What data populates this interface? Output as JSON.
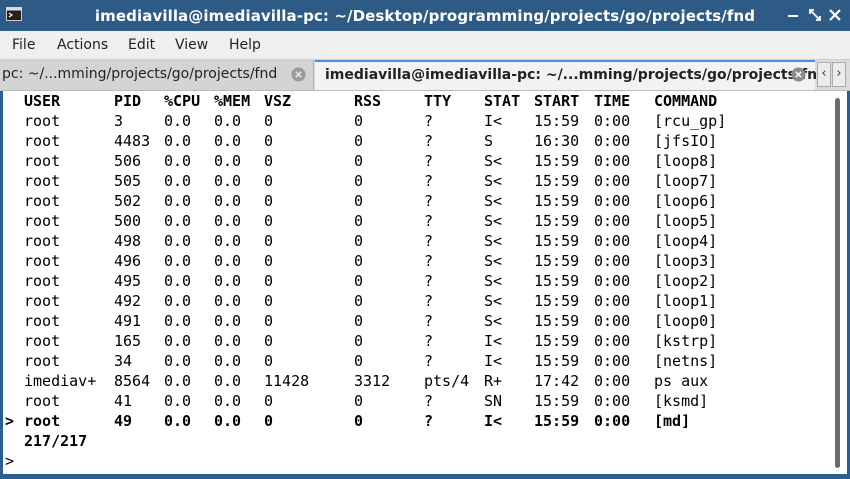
{
  "window": {
    "title": "imediavilla@imediavilla-pc: ~/Desktop/programming/projects/go/projects/fnd",
    "accent": "#2e5b86"
  },
  "menu": [
    "File",
    "Actions",
    "Edit",
    "View",
    "Help"
  ],
  "tabs": [
    {
      "label": "pc: ~/...mming/projects/go/projects/fnd",
      "active": false
    },
    {
      "label": "imediavilla@imediavilla-pc: ~/...mming/projects/go/projects/fnd",
      "active": true
    }
  ],
  "table": {
    "headers": [
      "USER",
      "PID",
      "%CPU",
      "%MEM",
      "VSZ",
      "RSS",
      "TTY",
      "STAT",
      "START",
      "TIME",
      "COMMAND"
    ],
    "rows": [
      [
        "root",
        "3",
        "0.0",
        "0.0",
        "0",
        "0",
        "?",
        "I<",
        "15:59",
        "0:00",
        "[rcu_gp]"
      ],
      [
        "root",
        "4483",
        "0.0",
        "0.0",
        "0",
        "0",
        "?",
        "S",
        "16:30",
        "0:00",
        "[jfsIO]"
      ],
      [
        "root",
        "506",
        "0.0",
        "0.0",
        "0",
        "0",
        "?",
        "S<",
        "15:59",
        "0:00",
        "[loop8]"
      ],
      [
        "root",
        "505",
        "0.0",
        "0.0",
        "0",
        "0",
        "?",
        "S<",
        "15:59",
        "0:00",
        "[loop7]"
      ],
      [
        "root",
        "502",
        "0.0",
        "0.0",
        "0",
        "0",
        "?",
        "S<",
        "15:59",
        "0:00",
        "[loop6]"
      ],
      [
        "root",
        "500",
        "0.0",
        "0.0",
        "0",
        "0",
        "?",
        "S<",
        "15:59",
        "0:00",
        "[loop5]"
      ],
      [
        "root",
        "498",
        "0.0",
        "0.0",
        "0",
        "0",
        "?",
        "S<",
        "15:59",
        "0:00",
        "[loop4]"
      ],
      [
        "root",
        "496",
        "0.0",
        "0.0",
        "0",
        "0",
        "?",
        "S<",
        "15:59",
        "0:00",
        "[loop3]"
      ],
      [
        "root",
        "495",
        "0.0",
        "0.0",
        "0",
        "0",
        "?",
        "S<",
        "15:59",
        "0:00",
        "[loop2]"
      ],
      [
        "root",
        "492",
        "0.0",
        "0.0",
        "0",
        "0",
        "?",
        "S<",
        "15:59",
        "0:00",
        "[loop1]"
      ],
      [
        "root",
        "491",
        "0.0",
        "0.0",
        "0",
        "0",
        "?",
        "S<",
        "15:59",
        "0:00",
        "[loop0]"
      ],
      [
        "root",
        "165",
        "0.0",
        "0.0",
        "0",
        "0",
        "?",
        "I<",
        "15:59",
        "0:00",
        "[kstrp]"
      ],
      [
        "root",
        "34",
        "0.0",
        "0.0",
        "0",
        "0",
        "?",
        "I<",
        "15:59",
        "0:00",
        "[netns]"
      ],
      [
        "imediav+",
        "8564",
        "0.0",
        "0.0",
        "11428",
        "3312",
        "pts/4",
        "R+",
        "17:42",
        "0:00",
        "ps aux"
      ],
      [
        "root",
        "41",
        "0.0",
        "0.0",
        "0",
        "0",
        "?",
        "SN",
        "15:59",
        "0:00",
        "[ksmd]"
      ]
    ],
    "selected_row": [
      "root",
      "49",
      "0.0",
      "0.0",
      "0",
      "0",
      "?",
      "I<",
      "15:59",
      "0:00",
      "[md]"
    ],
    "selection_marker": ">"
  },
  "counter": "217/217",
  "prompt": ">"
}
